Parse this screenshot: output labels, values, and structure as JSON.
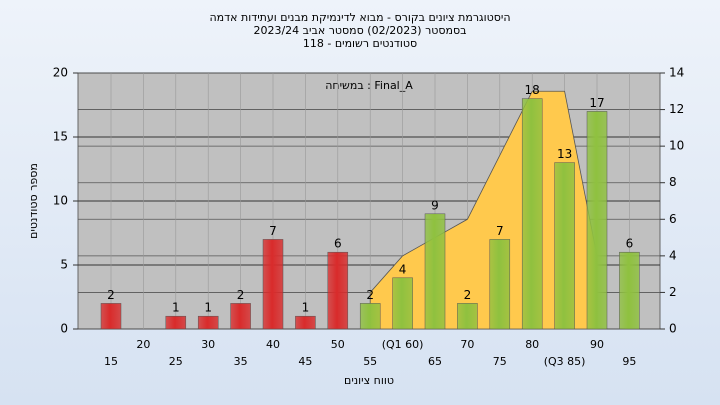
{
  "chart_data": {
    "type": "bar",
    "title": [
      "היסטוגרמת ציונים בקורס - מבוא לדינמיקת מבנים ועתידות אדמה",
      "בסמסטר (02/2023) סמסטר אביב 2023/24",
      "סטודנטים רשומים - 118"
    ],
    "annotation": "במשיחה : Final_A",
    "x_label": "טווח ציונים",
    "y_label": "מספר סטודנטים",
    "categories": [
      "15",
      "20",
      "25",
      "30",
      "35",
      "40",
      "45",
      "50",
      "55",
      "(Q1 60)",
      "65",
      "70",
      "75",
      "80",
      "(Q3 85)",
      "90",
      "95"
    ],
    "values": [
      2,
      0,
      1,
      1,
      2,
      7,
      1,
      6,
      2,
      4,
      9,
      2,
      7,
      18,
      13,
      17,
      6
    ],
    "colors": [
      "#d92b2b",
      "#d92b2b",
      "#d92b2b",
      "#d92b2b",
      "#d92b2b",
      "#d92b2b",
      "#d92b2b",
      "#d92b2b",
      "#8fc13f",
      "#8fc13f",
      "#8fc13f",
      "#8fc13f",
      "#8fc13f",
      "#8fc13f",
      "#8fc13f",
      "#8fc13f",
      "#8fc13f"
    ],
    "area": {
      "axis": "y2",
      "color": "#ffc94d",
      "values": [
        null,
        null,
        null,
        null,
        null,
        null,
        null,
        null,
        2,
        4,
        5,
        6,
        9.5,
        13,
        13,
        4,
        null
      ]
    },
    "ylim": [
      0,
      20
    ],
    "yticks": [
      0,
      5,
      10,
      15,
      20
    ],
    "y2lim": [
      0,
      14
    ],
    "y2ticks": [
      0,
      2,
      4,
      6,
      8,
      10,
      12,
      14
    ],
    "grid": true
  }
}
